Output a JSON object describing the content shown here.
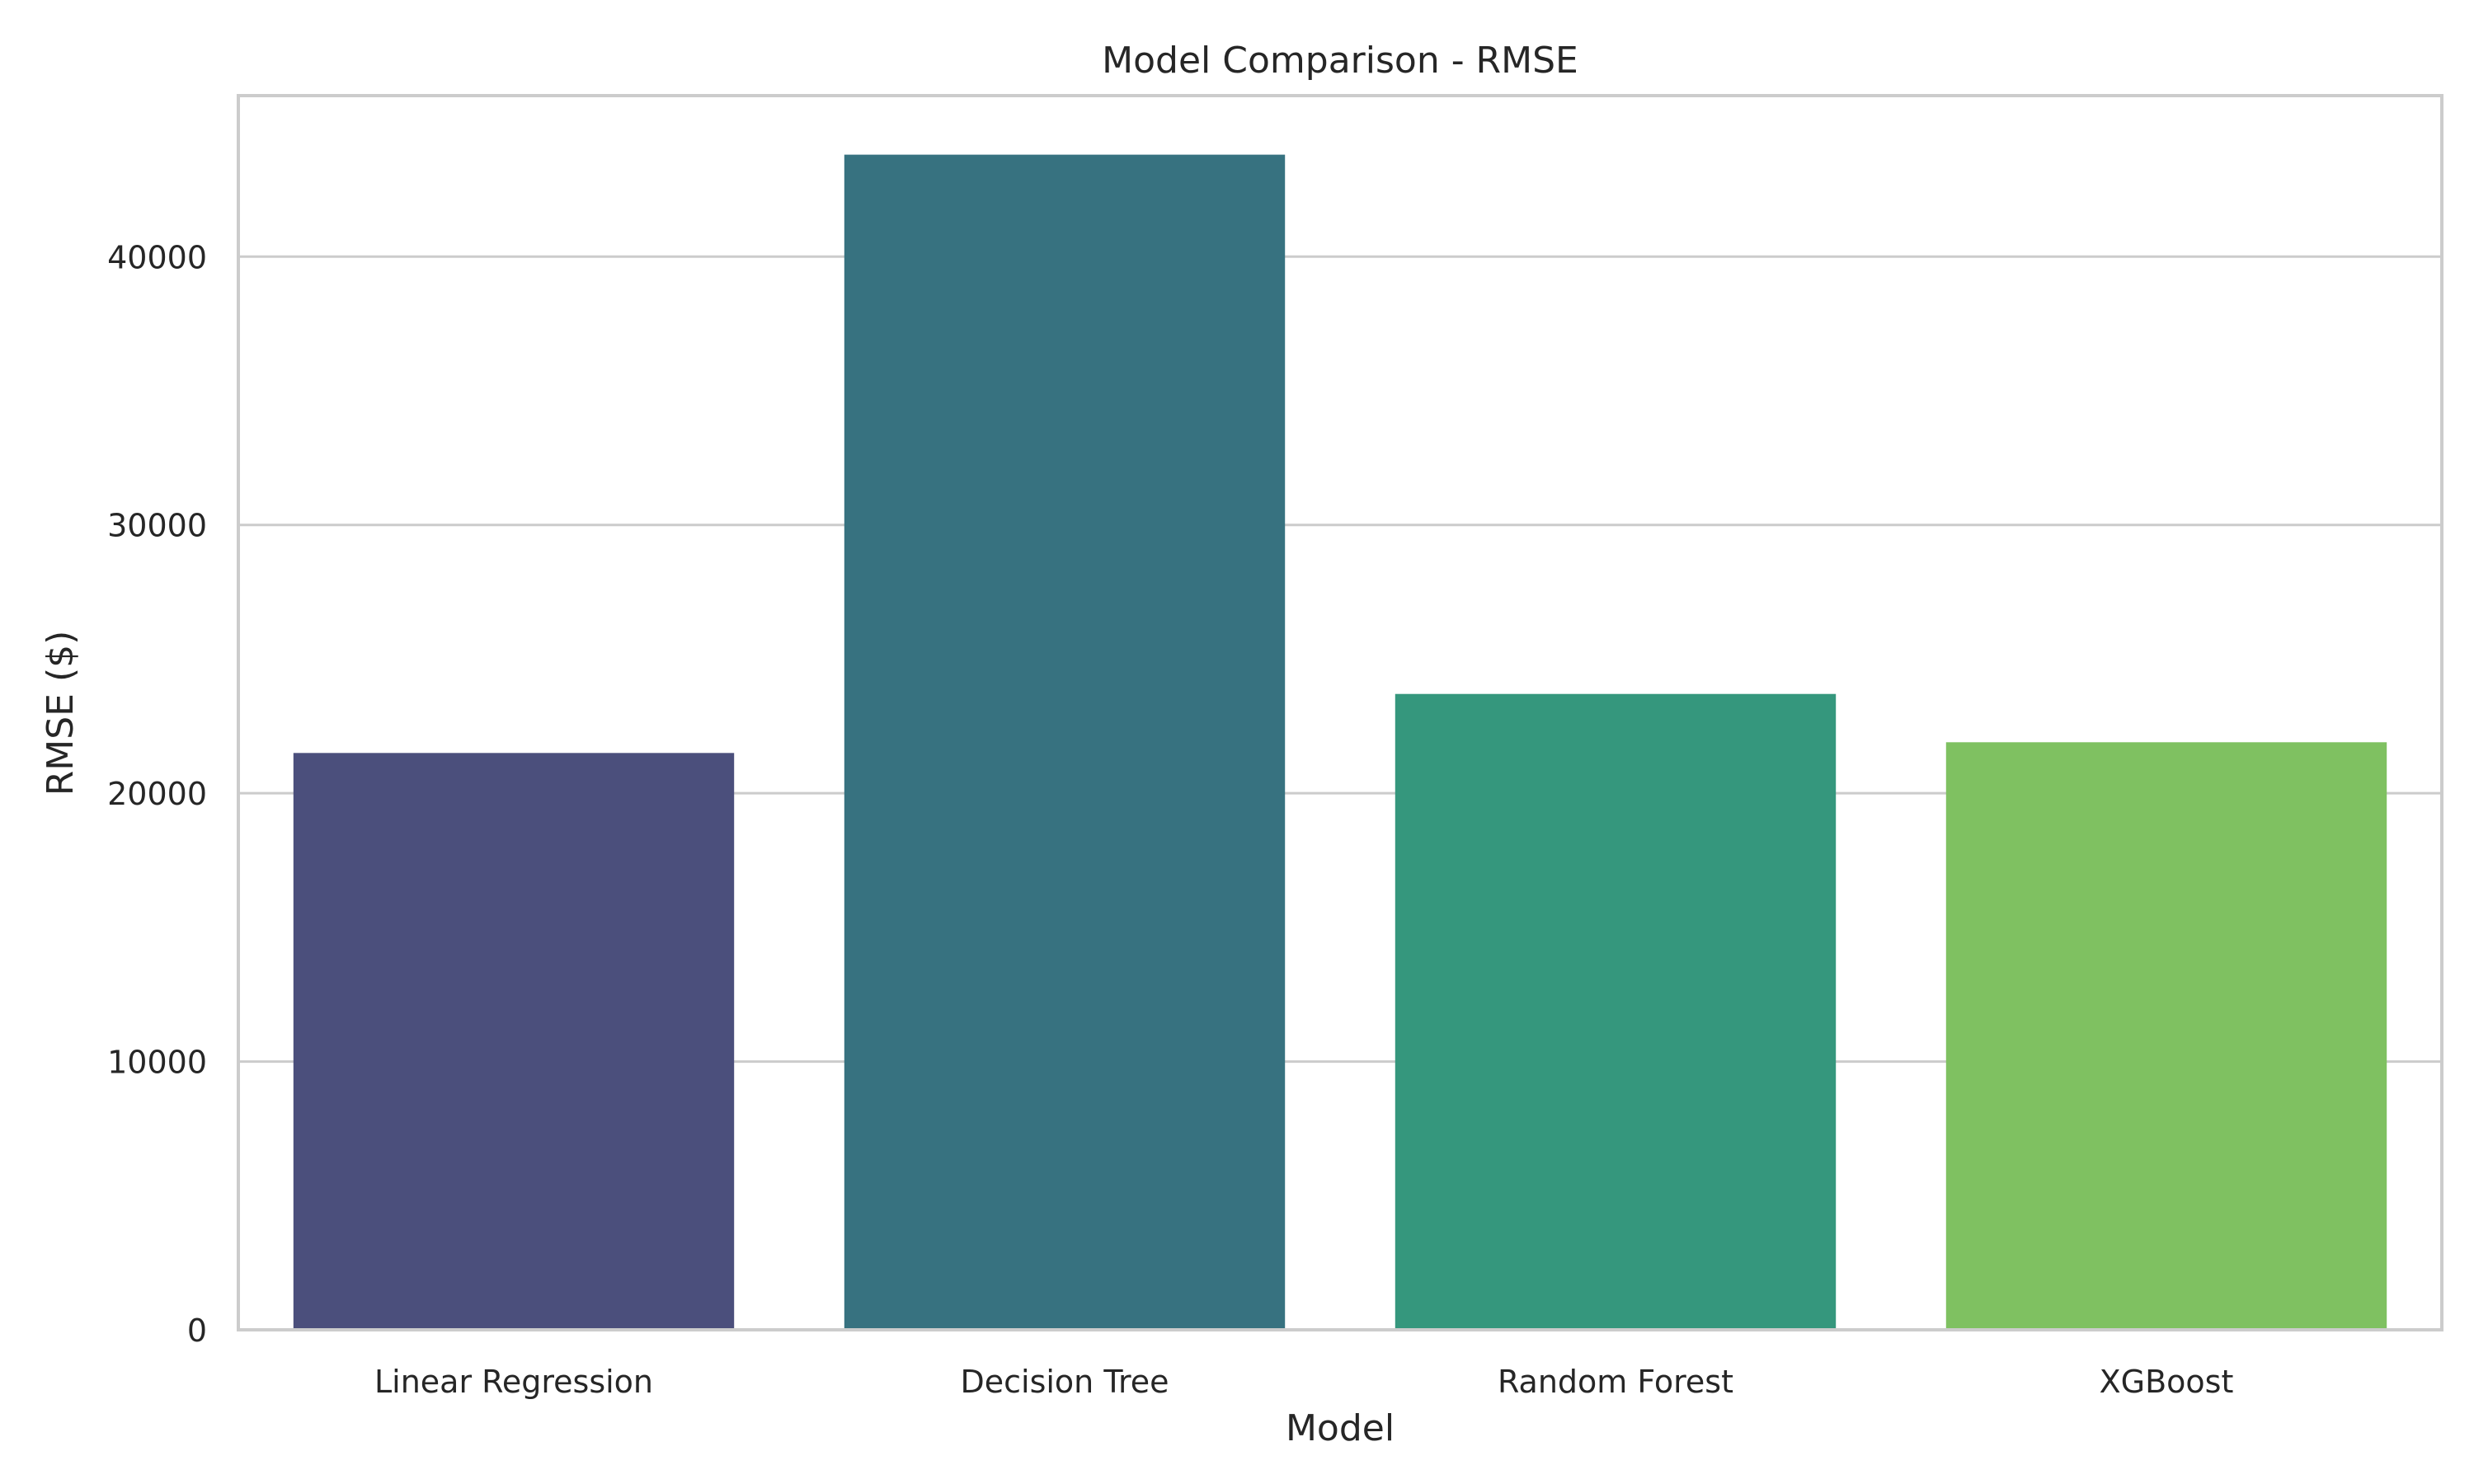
{
  "chart_data": {
    "type": "bar",
    "title": "Model Comparison - RMSE",
    "xlabel": "Model",
    "ylabel": "RMSE ($)",
    "categories": [
      "Linear Regression",
      "Decision Tree",
      "Random Forest",
      "XGBoost"
    ],
    "values": [
      21500,
      43800,
      23700,
      21900
    ],
    "colors": [
      "#4b4f7c",
      "#377280",
      "#35977d",
      "#7fc161"
    ],
    "ylim": [
      0,
      46000
    ],
    "yticks": [
      0,
      10000,
      20000,
      30000,
      40000
    ],
    "ytick_labels": [
      "0",
      "10000",
      "20000",
      "30000",
      "40000"
    ],
    "grid": "y",
    "legend": "none"
  }
}
